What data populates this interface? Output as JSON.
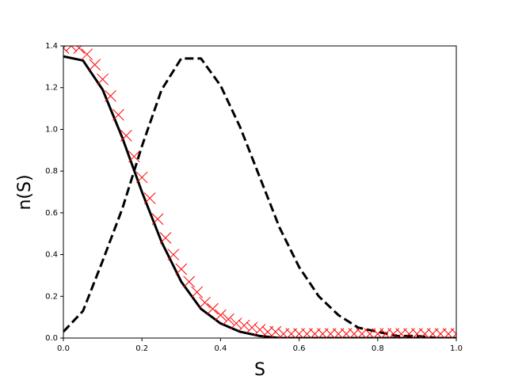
{
  "chart_data": {
    "type": "line",
    "xlabel": "S",
    "ylabel": "n(S)",
    "xlim": [
      0,
      1
    ],
    "ylim": [
      0,
      1.4
    ],
    "xticks": [
      {
        "value": 0,
        "label": "0.0"
      },
      {
        "value": 0.2,
        "label": "0.2"
      },
      {
        "value": 0.4,
        "label": "0.4"
      },
      {
        "value": 0.6,
        "label": "0.6"
      },
      {
        "value": 0.8,
        "label": "0.8"
      },
      {
        "value": 1,
        "label": "1.0"
      }
    ],
    "yticks": [
      {
        "value": 0,
        "label": "0.0"
      },
      0.2,
      0.4,
      0.6,
      0.8,
      {
        "value": 1,
        "label": "1.0"
      },
      1.2,
      1.4
    ],
    "x": [
      0,
      0.05,
      0.1,
      0.15,
      0.2,
      0.25,
      0.3,
      0.35,
      0.4,
      0.45,
      0.5,
      0.55,
      0.6,
      0.65,
      0.7,
      0.75,
      0.8,
      0.85,
      0.9,
      0.95,
      1
    ],
    "series": [
      {
        "style": "solid",
        "color": "#000000",
        "values": [
          1.35,
          1.33,
          1.19,
          0.96,
          0.7,
          0.46,
          0.27,
          0.14,
          0.07,
          0.03,
          0.01,
          0,
          0,
          0,
          0,
          0,
          0,
          0,
          0,
          0,
          0
        ]
      },
      {
        "style": "dashed",
        "color": "#000000",
        "values": [
          0.03,
          0.13,
          0.37,
          0.62,
          0.92,
          1.19,
          1.34,
          1.34,
          1.21,
          1.01,
          0.77,
          0.53,
          0.34,
          0.2,
          0.11,
          0.05,
          0.03,
          0.01,
          0.01,
          0,
          0
        ]
      },
      {
        "style": "markers",
        "marker": "x",
        "color": "#ff0000",
        "x": [
          0,
          0.02,
          0.04,
          0.06,
          0.08,
          0.1,
          0.12,
          0.14,
          0.16,
          0.18,
          0.2,
          0.22,
          0.24,
          0.26,
          0.28,
          0.3,
          0.32,
          0.34,
          0.36,
          0.38,
          0.4,
          0.42,
          0.44,
          0.46,
          0.48,
          0.5,
          0.52,
          0.54,
          0.56,
          0.58,
          0.6,
          0.62,
          0.64,
          0.66,
          0.68,
          0.7,
          0.72,
          0.74,
          0.76,
          0.78,
          0.8,
          0.82,
          0.84,
          0.86,
          0.88,
          0.9,
          0.92,
          0.94,
          0.96,
          0.98,
          1
        ],
        "values": [
          1.39,
          1.4,
          1.39,
          1.36,
          1.31,
          1.24,
          1.16,
          1.07,
          0.97,
          0.87,
          0.77,
          0.67,
          0.57,
          0.48,
          0.4,
          0.33,
          0.27,
          0.22,
          0.17,
          0.14,
          0.11,
          0.09,
          0.07,
          0.06,
          0.05,
          0.04,
          0.03,
          0.03,
          0.02,
          0.02,
          0.02,
          0.02,
          0.02,
          0.02,
          0.02,
          0.02,
          0.02,
          0.02,
          0.02,
          0.02,
          0.02,
          0.02,
          0.02,
          0.02,
          0.02,
          0.02,
          0.02,
          0.02,
          0.02,
          0.02,
          0.02
        ]
      }
    ]
  }
}
